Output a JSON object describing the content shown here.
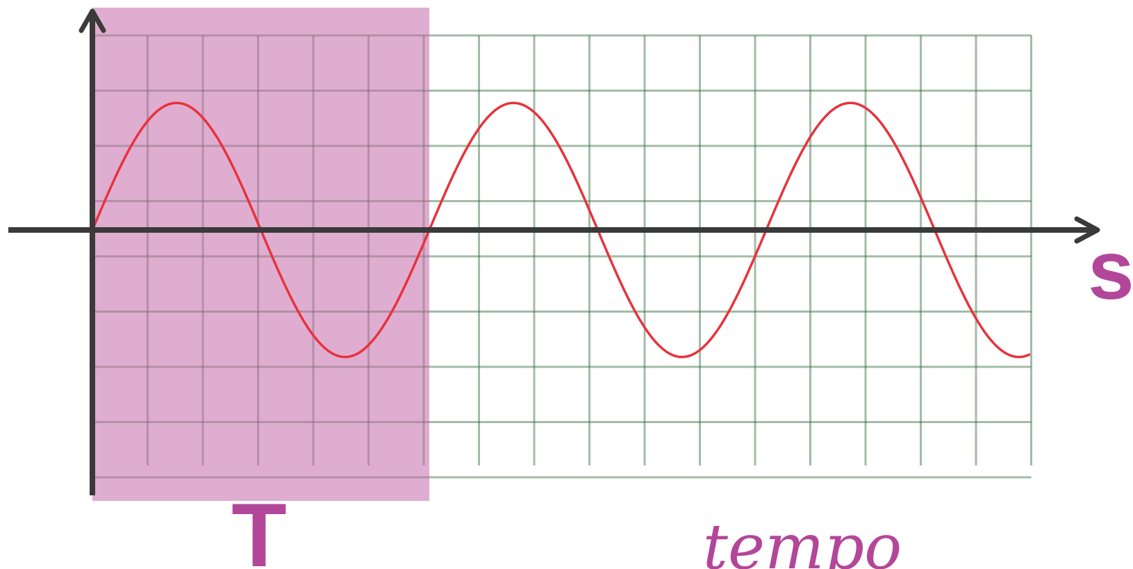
{
  "labels": {
    "period_symbol": "T",
    "horizontal_axis_symbol": "s",
    "time_word": "tempo"
  },
  "wave": {
    "function": "sine",
    "cycles_shown": 2.8,
    "amplitude_grid_cells": 2.3
  },
  "grid": {
    "columns": 17,
    "rows": 8
  },
  "period": {
    "grid_cells": 6
  },
  "colors": {
    "wave": "#e8323c",
    "grid": "#2f6b3a",
    "axis": "#3a3a3a",
    "period_highlight": "#c46aa8",
    "label": "#b2479a"
  }
}
